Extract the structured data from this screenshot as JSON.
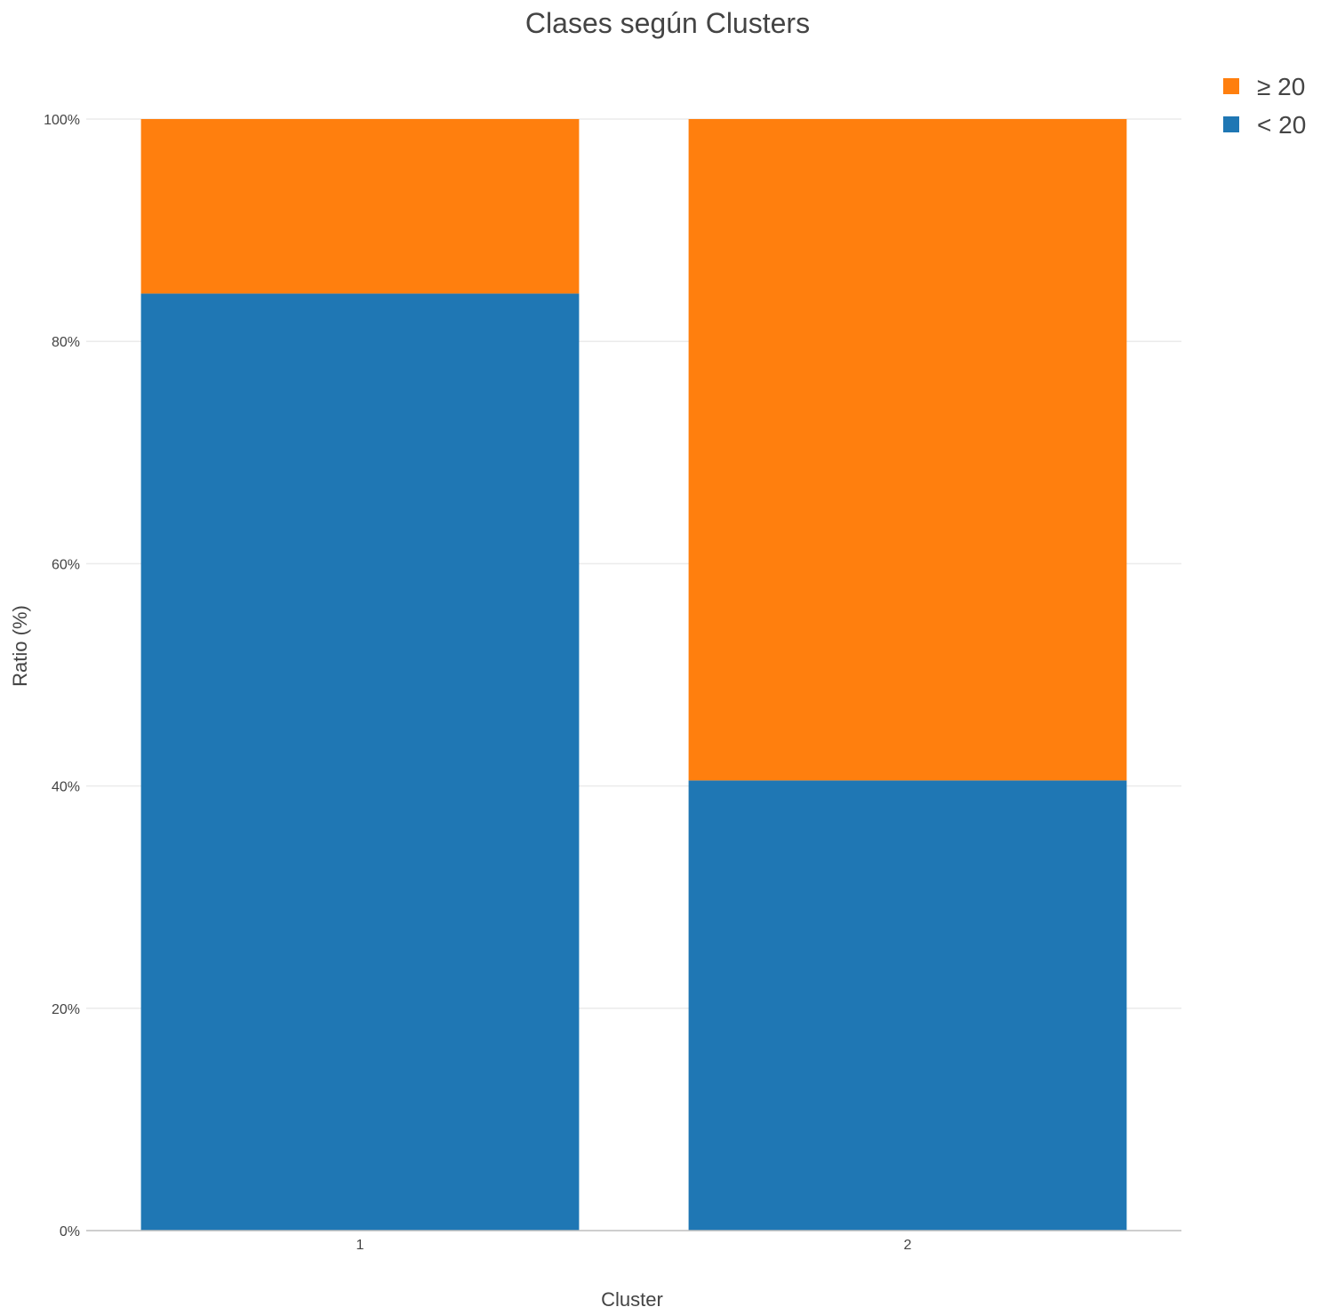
{
  "chart_data": {
    "type": "bar",
    "stacked": true,
    "title": "Clases según Clusters",
    "xlabel": "Cluster",
    "ylabel": "Ratio (%)",
    "categories": [
      "1",
      "2"
    ],
    "ylim": [
      0,
      100
    ],
    "y_ticks": [
      0,
      20,
      40,
      60,
      80,
      100
    ],
    "y_tick_labels": [
      "0%",
      "20%",
      "40%",
      "60%",
      "80%",
      "100%"
    ],
    "grid": true,
    "legend_position": "top-right",
    "series": [
      {
        "name": "< 20",
        "values": [
          84.3,
          40.5
        ],
        "color": "#1f77b4"
      },
      {
        "name": "≥ 20",
        "values": [
          15.7,
          59.5
        ],
        "color": "#ff7f0e"
      }
    ],
    "legend_order": [
      "≥ 20",
      "< 20"
    ]
  }
}
